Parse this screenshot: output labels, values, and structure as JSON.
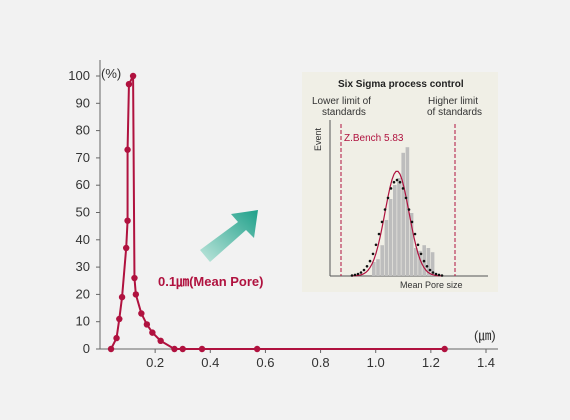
{
  "chart_data": [
    {
      "type": "line",
      "ylabel_unit": "(%)",
      "xlabel_unit": "(㎛)",
      "xlim": [
        0,
        1.4
      ],
      "ylim": [
        0,
        100
      ],
      "x_ticks": [
        "0.2",
        "0.4",
        "0.6",
        "0.8",
        "1.0",
        "1.2",
        "1.4"
      ],
      "y_ticks": [
        "0",
        "10",
        "20",
        "30",
        "40",
        "50",
        "60",
        "70",
        "80",
        "90",
        "100"
      ],
      "grid": false,
      "series_color": "#b0123f",
      "points": [
        {
          "x": 0.04,
          "y": 0
        },
        {
          "x": 0.06,
          "y": 4
        },
        {
          "x": 0.07,
          "y": 11
        },
        {
          "x": 0.08,
          "y": 19
        },
        {
          "x": 0.095,
          "y": 37
        },
        {
          "x": 0.1,
          "y": 47
        },
        {
          "x": 0.1,
          "y": 73
        },
        {
          "x": 0.105,
          "y": 97
        },
        {
          "x": 0.12,
          "y": 100
        },
        {
          "x": 0.125,
          "y": 26
        },
        {
          "x": 0.13,
          "y": 20
        },
        {
          "x": 0.15,
          "y": 13
        },
        {
          "x": 0.17,
          "y": 9
        },
        {
          "x": 0.19,
          "y": 6
        },
        {
          "x": 0.22,
          "y": 3
        },
        {
          "x": 0.27,
          "y": 0
        },
        {
          "x": 0.3,
          "y": 0
        },
        {
          "x": 0.37,
          "y": 0
        },
        {
          "x": 0.57,
          "y": 0
        },
        {
          "x": 1.25,
          "y": 0
        }
      ],
      "annotation": "0.1㎛(Mean Pore)",
      "arrow_color": "#1fa08a"
    },
    {
      "type": "bar",
      "title": "Six Sigma process control",
      "ylabel": "Event",
      "xlabel": "Mean Pore size",
      "lower_limit_label": [
        "Lower limit of",
        "standards"
      ],
      "upper_limit_label": [
        "Higher limit",
        "of standards"
      ],
      "zbench_label": "Z.Bench 5.83",
      "bar_heights_percent": [
        10,
        12,
        22,
        40,
        55,
        65,
        70,
        88,
        92,
        45,
        20,
        18,
        22,
        20,
        17
      ],
      "fit_curve": "normal"
    }
  ]
}
